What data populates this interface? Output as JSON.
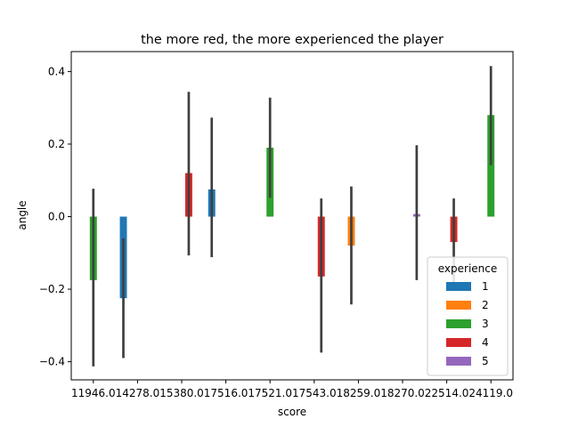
{
  "chart_data": {
    "type": "bar",
    "title": "the more red, the more experienced the player",
    "xlabel": "score",
    "ylabel": "angle",
    "categories": [
      "11946.0",
      "14278.0",
      "15380.0",
      "17516.0",
      "17521.0",
      "17543.0",
      "18259.0",
      "18270.0",
      "22514.0",
      "24119.0"
    ],
    "ylim": [
      -0.45,
      0.455
    ],
    "yticks": [
      -0.4,
      -0.2,
      0.0,
      0.2,
      0.4
    ],
    "ytick_labels": [
      "−0.4",
      "−0.2",
      "0.0",
      "0.2",
      "0.4"
    ],
    "grid": false,
    "legend": {
      "title": "experience",
      "placement": "lower right"
    },
    "series": [
      {
        "name": "1",
        "color": "#1f77b4"
      },
      {
        "name": "2",
        "color": "#ff7f0e"
      },
      {
        "name": "3",
        "color": "#2ca02c"
      },
      {
        "name": "4",
        "color": "#d62728"
      },
      {
        "name": "5",
        "color": "#9467bd"
      }
    ],
    "bars": [
      {
        "category": "11946.0",
        "series": "3",
        "value": -0.175,
        "ci": [
          -0.413,
          0.077
        ]
      },
      {
        "category": "14278.0",
        "series": "1",
        "value": -0.225,
        "ci": [
          -0.39,
          -0.06
        ]
      },
      {
        "category": "15380.0",
        "series": "4",
        "value": 0.12,
        "ci": [
          -0.107,
          0.344
        ]
      },
      {
        "category": "17516.0",
        "series": "1",
        "value": 0.075,
        "ci": [
          -0.112,
          0.273
        ]
      },
      {
        "category": "17521.0",
        "series": "3",
        "value": 0.19,
        "ci": [
          0.052,
          0.328
        ]
      },
      {
        "category": "17543.0",
        "series": "4",
        "value": -0.165,
        "ci": [
          -0.375,
          0.05
        ]
      },
      {
        "category": "18259.0",
        "series": "2",
        "value": -0.08,
        "ci": [
          -0.242,
          0.083
        ]
      },
      {
        "category": "18270.0",
        "series": "5",
        "value": 0.007,
        "ci": [
          -0.175,
          0.197
        ]
      },
      {
        "category": "22514.0",
        "series": "4",
        "value": -0.07,
        "ci": [
          -0.19,
          0.05
        ]
      },
      {
        "category": "24119.0",
        "series": "3",
        "value": 0.28,
        "ci": [
          0.142,
          0.415
        ]
      }
    ]
  }
}
